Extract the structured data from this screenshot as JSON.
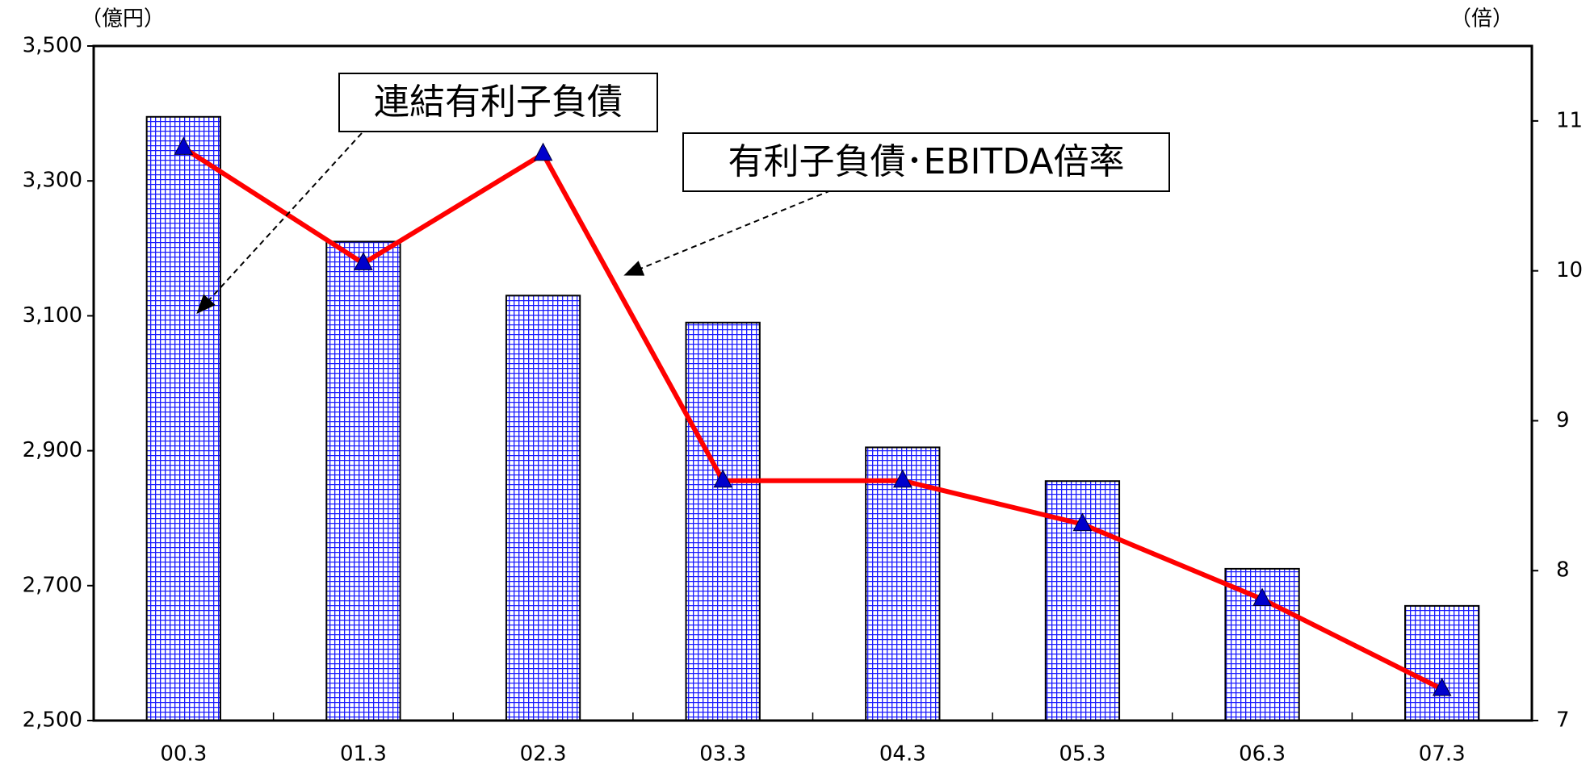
{
  "chart_data": {
    "type": "bar-line",
    "categories": [
      "00.3",
      "01.3",
      "02.3",
      "03.3",
      "04.3",
      "05.3",
      "06.3",
      "07.3"
    ],
    "series": [
      {
        "name": "連結有利子負債",
        "type": "bar",
        "color": "#0000ff",
        "axis": "y",
        "values": [
          3395,
          3210,
          3130,
          3090,
          2905,
          2855,
          2725,
          2670
        ]
      },
      {
        "name": "有利子負債･EBITDA倍率",
        "type": "line",
        "color": "#ff0000",
        "marker_color": "#0000cc",
        "axis": "y2",
        "values": [
          10.82,
          10.05,
          10.78,
          8.6,
          8.6,
          8.31,
          7.81,
          7.21
        ]
      }
    ],
    "y_unit": "（億円）",
    "y2_unit": "（倍）",
    "ylim": [
      2500,
      3500
    ],
    "yticks": [
      {
        "value": 2500,
        "label": "2,500"
      },
      {
        "value": 2700,
        "label": "2,700"
      },
      {
        "value": 2900,
        "label": "2,900"
      },
      {
        "value": 3100,
        "label": "3,100"
      },
      {
        "value": 3300,
        "label": "3,300"
      },
      {
        "value": 3500,
        "label": "3,500"
      }
    ],
    "y2lim": [
      7,
      11.5
    ],
    "y2ticks": [
      7,
      8,
      9,
      10,
      11
    ]
  }
}
